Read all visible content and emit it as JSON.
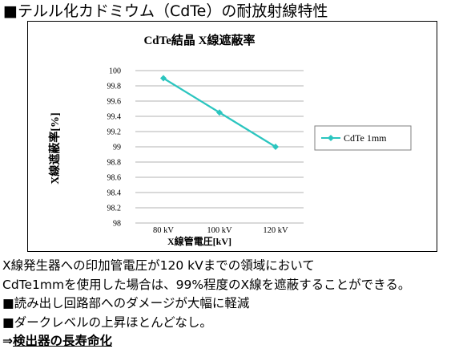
{
  "heading": "■テルル化カドミウム（CdTe）の耐放射線特性",
  "chart_data": {
    "type": "line",
    "title": "CdTe結晶  X線遮蔽率",
    "xlabel": "X線管電圧[kV]",
    "ylabel": "X線遮蔽率[%]",
    "categories": [
      "80 kV",
      "100 kV",
      "120 kV"
    ],
    "y_ticks": [
      "100",
      "99.8",
      "99.6",
      "99.4",
      "99.2",
      "99",
      "98.8",
      "98.6",
      "98.4",
      "98.2",
      "98"
    ],
    "ylim": [
      98,
      100
    ],
    "grid": true,
    "legend_position": "right",
    "series": [
      {
        "name": "CdTe 1mm",
        "values": [
          99.9,
          99.45,
          99.0
        ],
        "color": "#2bc5bf"
      }
    ]
  },
  "body": {
    "line1": "X線発生器への印加管電圧が120 kVまでの領域において",
    "line2": "CdTe1mmを使用した場合は、99%程度のX線を遮蔽することができる。",
    "line3": "■読み出し回路部へのダメージが大幅に軽減",
    "line4": "■ダークレベルの上昇ほとんどなし。",
    "arrow": "⇒",
    "conclusion": "検出器の長寿命化"
  }
}
